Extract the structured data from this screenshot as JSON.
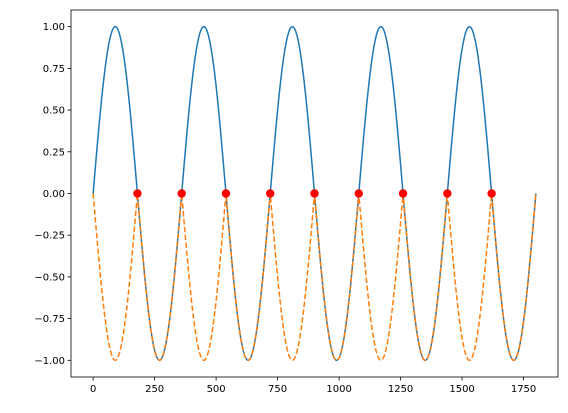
{
  "chart_data": {
    "type": "line",
    "title": "",
    "xlabel": "",
    "ylabel": "",
    "xlim": [
      -90,
      1890
    ],
    "ylim": [
      -1.1,
      1.1
    ],
    "xticks": [
      0,
      250,
      500,
      750,
      1000,
      1250,
      1500,
      1750
    ],
    "yticks": [
      -1.0,
      -0.75,
      -0.5,
      -0.25,
      0.0,
      0.25,
      0.5,
      0.75,
      1.0
    ],
    "xtick_labels": [
      "0",
      "250",
      "500",
      "750",
      "1000",
      "1250",
      "1500",
      "1750"
    ],
    "ytick_labels": [
      "−1.00",
      "−0.75",
      "−0.50",
      "−0.25",
      "0.00",
      "0.25",
      "0.50",
      "0.75",
      "1.00"
    ],
    "grid": false,
    "series": [
      {
        "kind": "line",
        "function": "sin(x degrees)",
        "x_range": [
          0,
          1800
        ],
        "style": "solid",
        "color": "#1f77b4"
      },
      {
        "kind": "line",
        "function": "-|sin(x degrees)|",
        "x_range": [
          0,
          1800
        ],
        "style": "dashed",
        "color": "#ff7f0e"
      },
      {
        "kind": "scatter",
        "color": "#ff0000",
        "x": [
          180,
          360,
          540,
          720,
          900,
          1080,
          1260,
          1440,
          1620
        ],
        "y": [
          0,
          0,
          0,
          0,
          0,
          0,
          0,
          0,
          0
        ]
      }
    ]
  }
}
